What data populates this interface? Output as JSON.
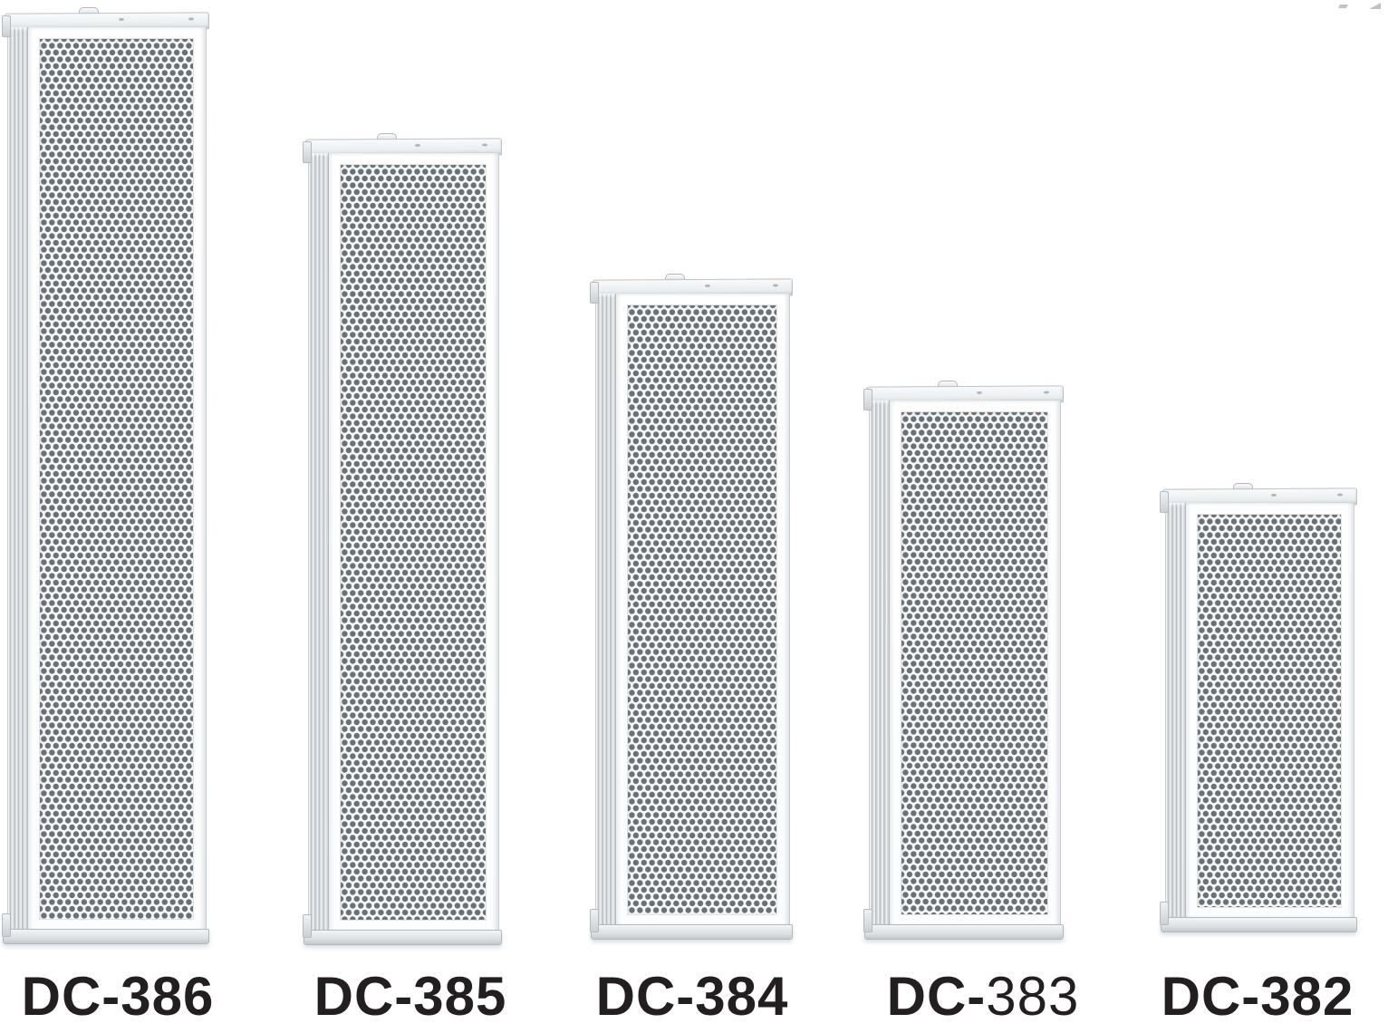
{
  "speakers": [
    {
      "model": "DC-386",
      "label_prefix": "DC-",
      "label_number": "386",
      "number_weight": "bold"
    },
    {
      "model": "DC-385",
      "label_prefix": "DC-",
      "label_number": "385",
      "number_weight": "bold"
    },
    {
      "model": "DC-384",
      "label_prefix": "DC-",
      "label_number": "384",
      "number_weight": "bold"
    },
    {
      "model": "DC-383",
      "label_prefix": "DC-",
      "label_number": "383",
      "number_weight": "normal"
    },
    {
      "model": "DC-382",
      "label_prefix": "DC-",
      "label_number": "382",
      "number_weight": "bold"
    }
  ],
  "colors": {
    "page-bg": "#ffffff",
    "label": "#231f20",
    "dot": "#6b7075",
    "grille-bg": "#f6f9fa",
    "frame-border": "#c9ced3",
    "rail-dark": "#b9bfc4",
    "cap-bg": "#eef1f3",
    "base-bg": "#dde1e4"
  }
}
